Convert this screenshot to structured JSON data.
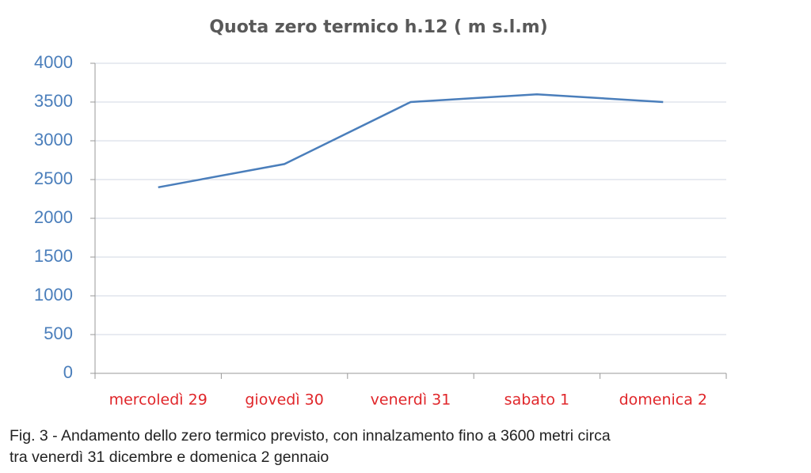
{
  "chart_data": {
    "type": "line",
    "title": "Quota zero termico h.12 ( m s.l.m)",
    "categories": [
      "mercoledì 29",
      "giovedì 30",
      "venerdì 31",
      "sabato 1",
      "domenica 2"
    ],
    "values": [
      2400,
      2700,
      3500,
      3600,
      3500
    ],
    "color": "#4a7ebb",
    "ylim": [
      0,
      4000
    ],
    "yticks": [
      0,
      500,
      1000,
      1500,
      2000,
      2500,
      3000,
      3500,
      4000
    ],
    "grid": true,
    "caption": [
      "Fig. 3 - Andamento dello zero termico previsto, con innalzamento fino a 3600 metri circa",
      "tra venerdì 31 dicembre e domenica 2 gennaio"
    ]
  }
}
